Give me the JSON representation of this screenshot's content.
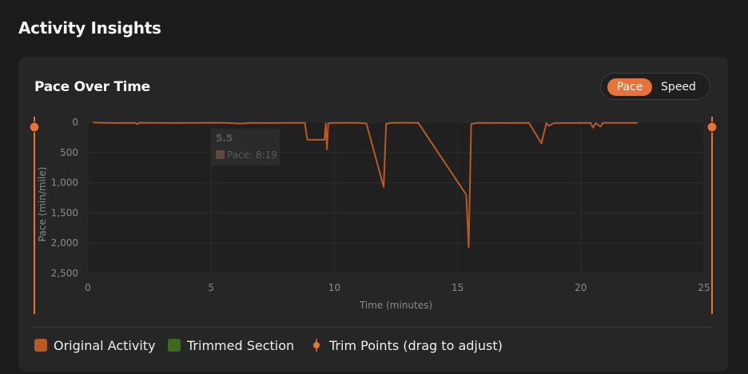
{
  "page": {
    "title": "Activity Insights"
  },
  "chart_card": {
    "title": "Pace Over Time",
    "toggle": {
      "options": [
        "Pace",
        "Speed"
      ],
      "selected": "Pace"
    }
  },
  "colors": {
    "accent": "#e8733a",
    "original_line": "#b85a25",
    "trimmed": "#3e6a1f",
    "background": "#1c1c1c",
    "card": "#262626"
  },
  "tooltip": {
    "x_label": "5.5",
    "series_label": "Pace: 8:19"
  },
  "legend": {
    "items": [
      {
        "label": "Original Activity",
        "icon": "orange-square"
      },
      {
        "label": "Trimmed Section",
        "icon": "green-square"
      },
      {
        "label": "Trim Points (drag to adjust)",
        "icon": "trim-point-handle"
      }
    ]
  },
  "chart_data": {
    "type": "line",
    "xlabel": "Time (minutes)",
    "ylabel": "Pace (min/mile)",
    "xlim": [
      0,
      25
    ],
    "ylim": [
      0,
      2500
    ],
    "y_inverted": true,
    "x_ticks": [
      0,
      5,
      10,
      15,
      20,
      25
    ],
    "y_ticks": [
      0,
      500,
      1000,
      1500,
      2000,
      2500
    ],
    "y_tick_labels": [
      "0",
      "500",
      "1,000",
      "1,500",
      "2,000",
      "2,500"
    ],
    "grid": true,
    "trim_points": {
      "start": 0,
      "end": 25
    },
    "series": [
      {
        "name": "Original Activity",
        "points": [
          [
            0.2,
            5
          ],
          [
            1.0,
            12
          ],
          [
            1.9,
            10
          ],
          [
            2.0,
            30
          ],
          [
            2.1,
            8
          ],
          [
            3.5,
            12
          ],
          [
            4.0,
            10
          ],
          [
            5.5,
            8
          ],
          [
            6.2,
            22
          ],
          [
            6.6,
            10
          ],
          [
            7.5,
            12
          ],
          [
            8.4,
            10
          ],
          [
            8.8,
            8
          ],
          [
            8.9,
            290
          ],
          [
            9.6,
            290
          ],
          [
            9.65,
            20
          ],
          [
            9.7,
            450
          ],
          [
            9.75,
            20
          ],
          [
            9.9,
            10
          ],
          [
            10.9,
            8
          ],
          [
            11.3,
            20
          ],
          [
            12.0,
            1070
          ],
          [
            12.1,
            25
          ],
          [
            12.3,
            10
          ],
          [
            13.4,
            8
          ],
          [
            15.35,
            1200
          ],
          [
            15.45,
            2070
          ],
          [
            15.55,
            30
          ],
          [
            15.8,
            10
          ],
          [
            17.2,
            12
          ],
          [
            17.9,
            10
          ],
          [
            18.4,
            350
          ],
          [
            18.6,
            15
          ],
          [
            18.7,
            60
          ],
          [
            18.9,
            15
          ],
          [
            19.5,
            12
          ],
          [
            20.4,
            10
          ],
          [
            20.5,
            90
          ],
          [
            20.6,
            15
          ],
          [
            20.8,
            70
          ],
          [
            20.9,
            10
          ],
          [
            22.3,
            10
          ]
        ]
      }
    ]
  }
}
